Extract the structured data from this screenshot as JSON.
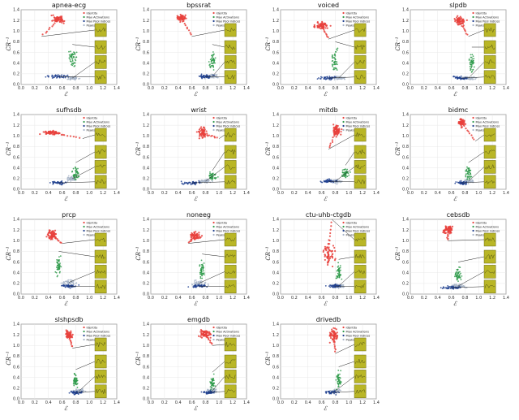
{
  "figure": {
    "xlabel": "ℰ",
    "ylabel": "CR⁻¹",
    "xticks": [
      "0.0",
      "0.2",
      "0.4",
      "0.6",
      "0.8",
      "1.0",
      "1.2",
      "1.4"
    ],
    "yticks": [
      "0.0",
      "0.2",
      "0.4",
      "0.6",
      "0.8",
      "1.0",
      "1.2",
      "1.4"
    ],
    "legend": [
      "Identity",
      "Max Activations",
      "Max Pool indices",
      "Peaks"
    ],
    "colors": {
      "identity": "#e8413c",
      "max_activations": "#2e9a4a",
      "max_pool": "#1f3f8f",
      "peaks": "#a8b5c8",
      "inset_fill": "#b9b626",
      "inset_stroke": "#6b6a10"
    }
  },
  "chart_data": [
    {
      "type": "scatter",
      "title": "apnea-ecg",
      "xlim": [
        0,
        1.4
      ],
      "ylim": [
        0,
        1.4
      ],
      "series": [
        {
          "name": "Identity",
          "center": [
            0.55,
            1.22
          ],
          "spread": [
            0.15,
            0.12
          ],
          "trail_to": [
            0.3,
            0.9
          ]
        },
        {
          "name": "Max Activations",
          "center": [
            0.75,
            0.5
          ],
          "spread": [
            0.1,
            0.25
          ]
        },
        {
          "name": "Max Pool indices",
          "center": [
            0.55,
            0.15
          ],
          "spread": [
            0.25,
            0.05
          ]
        },
        {
          "name": "Peaks",
          "center": [
            0.75,
            0.12
          ],
          "spread": [
            0.15,
            0.05
          ]
        }
      ]
    },
    {
      "type": "scatter",
      "title": "bpssrat",
      "xlim": [
        0,
        1.4
      ],
      "ylim": [
        0,
        1.4
      ],
      "series": [
        {
          "name": "Identity",
          "center": [
            0.45,
            1.25
          ],
          "spread": [
            0.12,
            0.1
          ],
          "trail_to": [
            0.6,
            0.9
          ]
        },
        {
          "name": "Max Activations",
          "center": [
            0.9,
            0.45
          ],
          "spread": [
            0.08,
            0.3
          ]
        },
        {
          "name": "Max Pool indices",
          "center": [
            0.8,
            0.15
          ],
          "spread": [
            0.2,
            0.06
          ]
        },
        {
          "name": "Peaks",
          "center": [
            0.9,
            0.15
          ],
          "spread": [
            0.15,
            0.06
          ]
        }
      ]
    },
    {
      "type": "scatter",
      "title": "voiced",
      "xlim": [
        0,
        1.4
      ],
      "ylim": [
        0,
        1.4
      ],
      "series": [
        {
          "name": "Identity",
          "center": [
            0.6,
            1.1
          ],
          "spread": [
            0.18,
            0.12
          ],
          "trail_to": [
            0.7,
            0.85
          ]
        },
        {
          "name": "Max Activations",
          "center": [
            0.8,
            0.45
          ],
          "spread": [
            0.08,
            0.35
          ]
        },
        {
          "name": "Max Pool indices",
          "center": [
            0.7,
            0.12
          ],
          "spread": [
            0.2,
            0.05
          ]
        },
        {
          "name": "Peaks",
          "center": [
            0.85,
            0.12
          ],
          "spread": [
            0.15,
            0.05
          ]
        }
      ]
    },
    {
      "type": "scatter",
      "title": "slpdb",
      "xlim": [
        0,
        1.4
      ],
      "ylim": [
        0,
        1.4
      ],
      "series": [
        {
          "name": "Identity",
          "center": [
            0.72,
            1.2
          ],
          "spread": [
            0.12,
            0.15
          ],
          "trail_to": [
            0.85,
            0.9
          ]
        },
        {
          "name": "Max Activations",
          "center": [
            0.9,
            0.4
          ],
          "spread": [
            0.06,
            0.3
          ]
        },
        {
          "name": "Max Pool indices",
          "center": [
            0.75,
            0.12
          ],
          "spread": [
            0.2,
            0.05
          ]
        },
        {
          "name": "Peaks",
          "center": [
            0.85,
            0.12
          ],
          "spread": [
            0.15,
            0.05
          ]
        }
      ]
    },
    {
      "type": "scatter",
      "title": "sufhsdb",
      "xlim": [
        0,
        1.4
      ],
      "ylim": [
        0,
        1.4
      ],
      "series": [
        {
          "name": "Identity",
          "center": [
            0.45,
            1.06
          ],
          "spread": [
            0.22,
            0.06
          ],
          "trail_to": [
            0.9,
            0.95
          ]
        },
        {
          "name": "Max Activations",
          "center": [
            0.8,
            0.3
          ],
          "spread": [
            0.1,
            0.2
          ]
        },
        {
          "name": "Max Pool indices",
          "center": [
            0.55,
            0.12
          ],
          "spread": [
            0.22,
            0.05
          ]
        },
        {
          "name": "Peaks",
          "center": [
            0.75,
            0.2
          ],
          "spread": [
            0.12,
            0.08
          ]
        }
      ]
    },
    {
      "type": "scatter",
      "title": "wrist",
      "xlim": [
        0,
        1.4
      ],
      "ylim": [
        0,
        1.4
      ],
      "series": [
        {
          "name": "Identity",
          "center": [
            0.75,
            1.05
          ],
          "spread": [
            0.12,
            0.18
          ],
          "trail_to": [
            1.0,
            0.95
          ]
        },
        {
          "name": "Max Activations",
          "center": [
            0.9,
            0.25
          ],
          "spread": [
            0.1,
            0.1
          ]
        },
        {
          "name": "Max Pool indices",
          "center": [
            0.6,
            0.12
          ],
          "spread": [
            0.25,
            0.05
          ]
        },
        {
          "name": "Peaks",
          "center": [
            0.8,
            0.15
          ],
          "spread": [
            0.15,
            0.06
          ]
        }
      ]
    },
    {
      "type": "scatter",
      "title": "mitdb",
      "xlim": [
        0,
        1.4
      ],
      "ylim": [
        0,
        1.4
      ],
      "series": [
        {
          "name": "Identity",
          "center": [
            0.82,
            1.1
          ],
          "spread": [
            0.1,
            0.2
          ],
          "trail_to": [
            0.7,
            0.75
          ]
        },
        {
          "name": "Max Activations",
          "center": [
            0.95,
            0.3
          ],
          "spread": [
            0.08,
            0.15
          ]
        },
        {
          "name": "Max Pool indices",
          "center": [
            0.7,
            0.15
          ],
          "spread": [
            0.2,
            0.06
          ]
        },
        {
          "name": "Peaks",
          "center": [
            0.8,
            0.15
          ],
          "spread": [
            0.15,
            0.06
          ]
        }
      ]
    },
    {
      "type": "scatter",
      "title": "bidmc",
      "xlim": [
        0,
        1.4
      ],
      "ylim": [
        0,
        1.4
      ],
      "series": [
        {
          "name": "Identity",
          "center": [
            0.75,
            1.25
          ],
          "spread": [
            0.08,
            0.12
          ],
          "trail_to": [
            0.95,
            0.9
          ]
        },
        {
          "name": "Max Activations",
          "center": [
            0.85,
            0.3
          ],
          "spread": [
            0.08,
            0.2
          ]
        },
        {
          "name": "Max Pool indices",
          "center": [
            0.75,
            0.12
          ],
          "spread": [
            0.15,
            0.05
          ]
        },
        {
          "name": "Peaks",
          "center": [
            0.85,
            0.15
          ],
          "spread": [
            0.12,
            0.06
          ]
        }
      ]
    },
    {
      "type": "scatter",
      "title": "prcp",
      "xlim": [
        0,
        1.4
      ],
      "ylim": [
        0,
        1.4
      ],
      "series": [
        {
          "name": "Identity",
          "center": [
            0.45,
            1.1
          ],
          "spread": [
            0.12,
            0.15
          ],
          "trail_to": [
            0.6,
            0.95
          ]
        },
        {
          "name": "Max Activations",
          "center": [
            0.55,
            0.5
          ],
          "spread": [
            0.06,
            0.3
          ]
        },
        {
          "name": "Max Pool indices",
          "center": [
            0.7,
            0.15
          ],
          "spread": [
            0.2,
            0.05
          ]
        },
        {
          "name": "Peaks",
          "center": [
            0.7,
            0.22
          ],
          "spread": [
            0.2,
            0.08
          ]
        }
      ]
    },
    {
      "type": "scatter",
      "title": "noneeg",
      "xlim": [
        0,
        1.4
      ],
      "ylim": [
        0,
        1.4
      ],
      "series": [
        {
          "name": "Identity",
          "center": [
            0.65,
            1.1
          ],
          "spread": [
            0.15,
            0.12
          ],
          "trail_to": [
            0.55,
            0.95
          ]
        },
        {
          "name": "Max Activations",
          "center": [
            0.75,
            0.45
          ],
          "spread": [
            0.06,
            0.3
          ]
        },
        {
          "name": "Max Pool indices",
          "center": [
            0.7,
            0.15
          ],
          "spread": [
            0.2,
            0.05
          ]
        },
        {
          "name": "Peaks",
          "center": [
            0.7,
            0.2
          ],
          "spread": [
            0.2,
            0.08
          ]
        }
      ]
    },
    {
      "type": "scatter",
      "title": "ctu-uhb-ctgdb",
      "xlim": [
        0,
        1.4
      ],
      "ylim": [
        0,
        1.4
      ],
      "series": [
        {
          "name": "Identity",
          "center": [
            0.7,
            0.75
          ],
          "spread": [
            0.15,
            0.35
          ],
          "trail_to": [
            0.75,
            1.4
          ]
        },
        {
          "name": "Max Activations",
          "center": [
            0.85,
            0.4
          ],
          "spread": [
            0.06,
            0.25
          ]
        },
        {
          "name": "Max Pool indices",
          "center": [
            0.8,
            0.15
          ],
          "spread": [
            0.18,
            0.05
          ]
        },
        {
          "name": "Peaks",
          "center": [
            0.85,
            0.15
          ],
          "spread": [
            0.15,
            0.06
          ]
        }
      ]
    },
    {
      "type": "scatter",
      "title": "cebsdb",
      "xlim": [
        0,
        1.4
      ],
      "ylim": [
        0,
        1.4
      ],
      "series": [
        {
          "name": "Identity",
          "center": [
            0.55,
            1.2
          ],
          "spread": [
            0.12,
            0.12
          ],
          "trail_to": [
            0.55,
            1.0
          ]
        },
        {
          "name": "Max Activations",
          "center": [
            0.7,
            0.35
          ],
          "spread": [
            0.08,
            0.25
          ]
        },
        {
          "name": "Max Pool indices",
          "center": [
            0.6,
            0.12
          ],
          "spread": [
            0.22,
            0.05
          ]
        },
        {
          "name": "Peaks",
          "center": [
            0.7,
            0.15
          ],
          "spread": [
            0.18,
            0.06
          ]
        }
      ]
    },
    {
      "type": "scatter",
      "title": "slshpsdb",
      "xlim": [
        0,
        1.4
      ],
      "ylim": [
        0,
        1.4
      ],
      "series": [
        {
          "name": "Identity",
          "center": [
            0.7,
            1.2
          ],
          "spread": [
            0.08,
            0.12
          ],
          "trail_to": [
            0.75,
            0.95
          ]
        },
        {
          "name": "Max Activations",
          "center": [
            0.8,
            0.35
          ],
          "spread": [
            0.08,
            0.2
          ]
        },
        {
          "name": "Max Pool indices",
          "center": [
            0.8,
            0.12
          ],
          "spread": [
            0.15,
            0.05
          ]
        },
        {
          "name": "Peaks",
          "center": [
            0.85,
            0.15
          ],
          "spread": [
            0.12,
            0.06
          ]
        }
      ]
    },
    {
      "type": "scatter",
      "title": "emgdb",
      "xlim": [
        0,
        1.4
      ],
      "ylim": [
        0,
        1.4
      ],
      "series": [
        {
          "name": "Identity",
          "center": [
            0.8,
            1.22
          ],
          "spread": [
            0.15,
            0.1
          ],
          "trail_to": [
            0.9,
            1.0
          ]
        },
        {
          "name": "Max Activations",
          "center": [
            0.9,
            0.3
          ],
          "spread": [
            0.06,
            0.2
          ]
        },
        {
          "name": "Max Pool indices",
          "center": [
            0.85,
            0.12
          ],
          "spread": [
            0.15,
            0.05
          ]
        },
        {
          "name": "Peaks",
          "center": [
            0.9,
            0.15
          ],
          "spread": [
            0.12,
            0.06
          ]
        }
      ]
    },
    {
      "type": "scatter",
      "title": "drivedb",
      "xlim": [
        0,
        1.4
      ],
      "ylim": [
        0,
        1.4
      ],
      "series": [
        {
          "name": "Identity",
          "center": [
            0.78,
            1.2
          ],
          "spread": [
            0.1,
            0.18
          ],
          "trail_to": [
            0.8,
            0.85
          ]
        },
        {
          "name": "Max Activations",
          "center": [
            0.85,
            0.35
          ],
          "spread": [
            0.06,
            0.25
          ]
        },
        {
          "name": "Max Pool indices",
          "center": [
            0.75,
            0.12
          ],
          "spread": [
            0.15,
            0.05
          ]
        },
        {
          "name": "Peaks",
          "center": [
            0.8,
            0.15
          ],
          "spread": [
            0.12,
            0.06
          ]
        }
      ]
    }
  ]
}
